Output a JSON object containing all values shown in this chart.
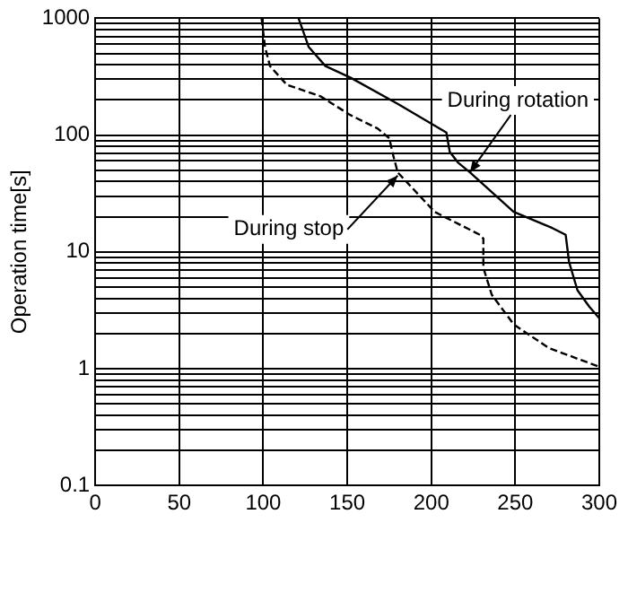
{
  "chart_data": {
    "type": "line",
    "ylabel": "Operation time[s]",
    "log": "y",
    "grid": true,
    "legend": false,
    "marker": "none",
    "xlim": [
      0,
      300
    ],
    "xticks": [
      0,
      50,
      100,
      150,
      200,
      250,
      300
    ],
    "ylim": [
      0.1,
      1000
    ],
    "yticks": [
      0.1,
      {
        "value": 0.2,
        "label": null
      },
      {
        "value": 0.3,
        "label": null
      },
      {
        "value": 0.4,
        "label": null
      },
      {
        "value": 0.5,
        "label": null
      },
      {
        "value": 0.6,
        "label": null
      },
      {
        "value": 0.7,
        "label": null
      },
      {
        "value": 0.8,
        "label": null
      },
      {
        "value": 0.9,
        "label": null
      },
      1,
      {
        "value": 2,
        "label": null
      },
      {
        "value": 3,
        "label": null
      },
      {
        "value": 4,
        "label": null
      },
      {
        "value": 5,
        "label": null
      },
      {
        "value": 6,
        "label": null
      },
      {
        "value": 7,
        "label": null
      },
      {
        "value": 8,
        "label": null
      },
      {
        "value": 9,
        "label": null
      },
      10,
      {
        "value": 20,
        "label": null
      },
      {
        "value": 30,
        "label": null
      },
      {
        "value": 40,
        "label": null
      },
      {
        "value": 50,
        "label": null
      },
      {
        "value": 60,
        "label": null
      },
      {
        "value": 70,
        "label": null
      },
      {
        "value": 80,
        "label": null
      },
      {
        "value": 90,
        "label": null
      },
      100,
      {
        "value": 200,
        "label": null
      },
      {
        "value": 300,
        "label": null
      },
      {
        "value": 400,
        "label": null
      },
      {
        "value": 500,
        "label": null
      },
      {
        "value": 600,
        "label": null
      },
      {
        "value": 700,
        "label": null
      },
      {
        "value": 800,
        "label": null
      },
      {
        "value": 900,
        "label": null
      },
      1000
    ],
    "series": [
      {
        "color": "#000000",
        "line_style": "solid",
        "x": [
          121,
          127,
          137,
          152,
          180,
          209,
          211,
          216,
          223,
          249,
          272,
          280,
          282,
          287,
          294,
          300
        ],
        "values": [
          1000,
          570,
          390,
          310,
          185,
          105,
          72,
          58,
          48,
          22,
          16,
          14,
          8.2,
          4.7,
          3.4,
          2.7
        ]
      },
      {
        "color": "#000000",
        "line_style": "dashed",
        "x": [
          99,
          101,
          104,
          114,
          134,
          152,
          168,
          175,
          177,
          180,
          202,
          229,
          231,
          231,
          236,
          249,
          270,
          300
        ],
        "values": [
          1000,
          570,
          390,
          270,
          215,
          148,
          114,
          94,
          70,
          48,
          22,
          14,
          13,
          7.3,
          4.3,
          2.4,
          1.5,
          1.04
        ]
      }
    ],
    "annotations": [
      {
        "text": "During rotation",
        "x": 223,
        "y": 48
      },
      {
        "text": "During stop",
        "x": 180,
        "y": 45
      }
    ]
  }
}
